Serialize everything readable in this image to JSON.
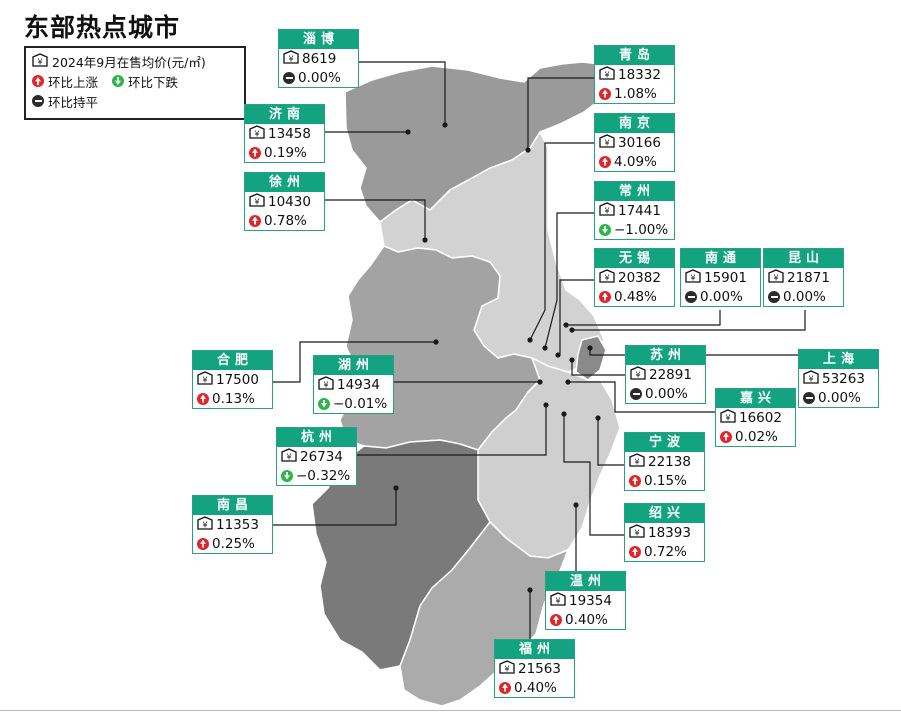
{
  "title": "东部热点城市",
  "legend": {
    "price_label": "2024年9月在售均价(元/㎡)",
    "up_label": "环比上涨",
    "down_label": "环比下跌",
    "flat_label": "环比持平"
  },
  "colors": {
    "card_header": "#13a380",
    "up": "#e0262b",
    "down": "#2fb34a",
    "flat": "#2b2b2b",
    "region_shandong": "#9a9a9a",
    "region_jiangsu": "#d2d2d2",
    "region_anhui": "#a3a3a3",
    "region_zhejiang": "#cfcfcf",
    "region_jiangxi": "#7a7a7a",
    "region_fujian": "#ababab",
    "region_shanghai": "#8a8a8a"
  },
  "cities": [
    {
      "name": "淄博",
      "price": "8619",
      "change": "0.00%",
      "trend": "flat"
    },
    {
      "name": "青岛",
      "price": "18332",
      "change": "1.08%",
      "trend": "up"
    },
    {
      "name": "济南",
      "price": "13458",
      "change": "0.19%",
      "trend": "up"
    },
    {
      "name": "南京",
      "price": "30166",
      "change": "4.09%",
      "trend": "up"
    },
    {
      "name": "徐州",
      "price": "10430",
      "change": "0.78%",
      "trend": "up"
    },
    {
      "name": "常州",
      "price": "17441",
      "change": "−1.00%",
      "trend": "down"
    },
    {
      "name": "无锡",
      "price": "20382",
      "change": "0.48%",
      "trend": "up"
    },
    {
      "name": "南通",
      "price": "15901",
      "change": "0.00%",
      "trend": "flat"
    },
    {
      "name": "昆山",
      "price": "21871",
      "change": "0.00%",
      "trend": "flat"
    },
    {
      "name": "合肥",
      "price": "17500",
      "change": "0.13%",
      "trend": "up"
    },
    {
      "name": "湖州",
      "price": "14934",
      "change": "−0.01%",
      "trend": "down"
    },
    {
      "name": "苏州",
      "price": "22891",
      "change": "0.00%",
      "trend": "flat"
    },
    {
      "name": "上海",
      "price": "53263",
      "change": "0.00%",
      "trend": "flat"
    },
    {
      "name": "嘉兴",
      "price": "16602",
      "change": "0.02%",
      "trend": "up"
    },
    {
      "name": "杭州",
      "price": "26734",
      "change": "−0.32%",
      "trend": "down"
    },
    {
      "name": "宁波",
      "price": "22138",
      "change": "0.15%",
      "trend": "up"
    },
    {
      "name": "南昌",
      "price": "11353",
      "change": "0.25%",
      "trend": "up"
    },
    {
      "name": "绍兴",
      "price": "18393",
      "change": "0.72%",
      "trend": "up"
    },
    {
      "name": "温州",
      "price": "19354",
      "change": "0.40%",
      "trend": "up"
    },
    {
      "name": "福州",
      "price": "21563",
      "change": "0.40%",
      "trend": "up"
    }
  ]
}
